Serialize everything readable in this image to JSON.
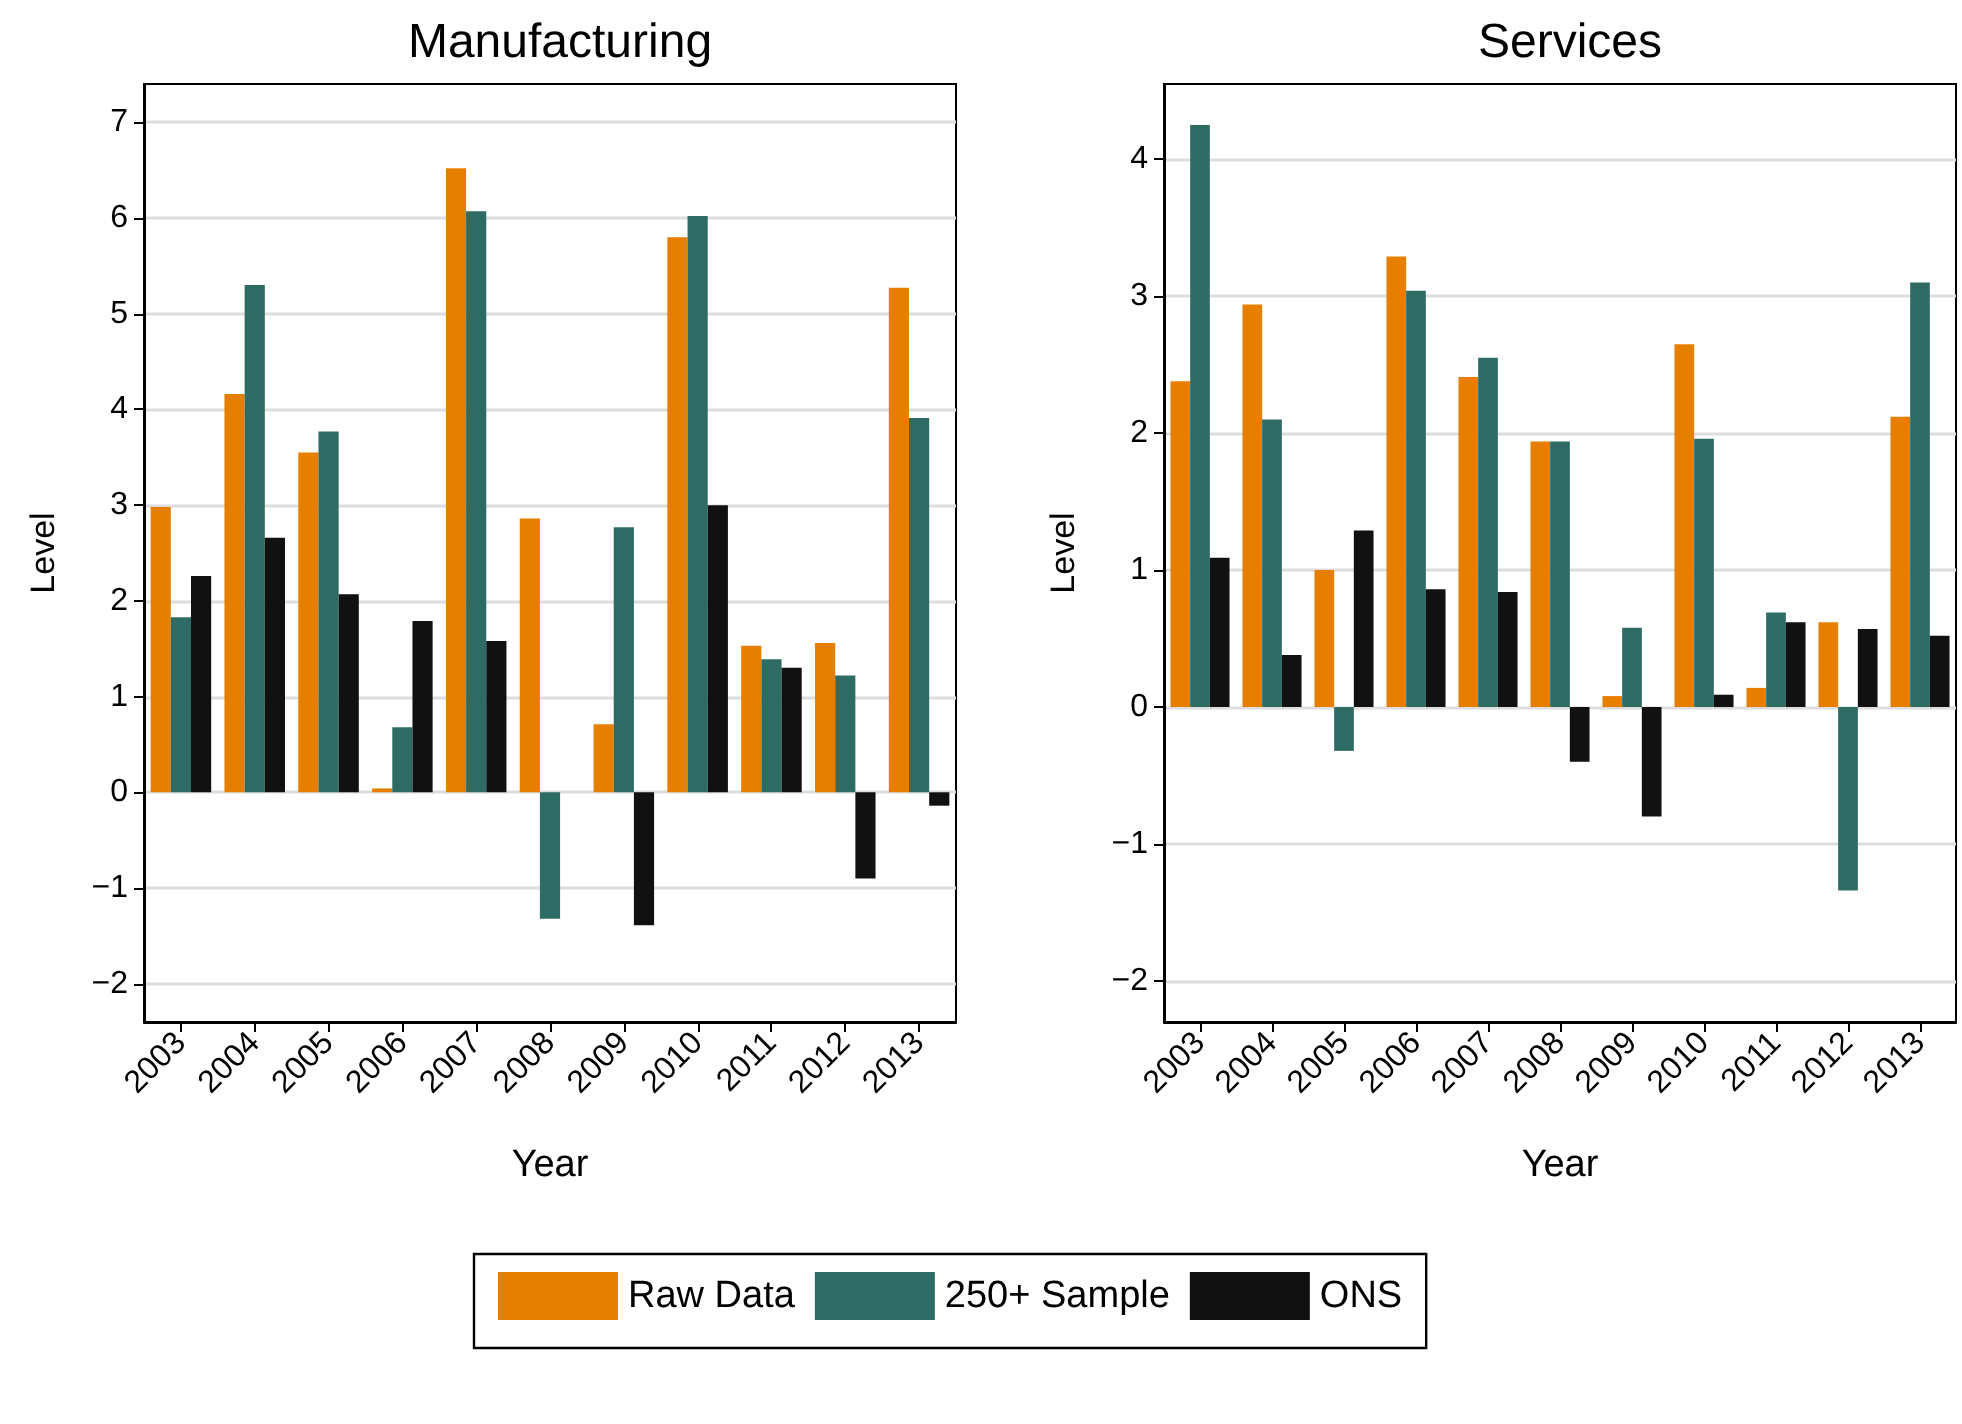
{
  "chart_data": [
    {
      "type": "bar",
      "title": "Manufacturing",
      "xlabel": "Year",
      "ylabel": "Level",
      "categories": [
        "2003",
        "2004",
        "2005",
        "2006",
        "2007",
        "2008",
        "2009",
        "2010",
        "2011",
        "2012",
        "2013"
      ],
      "series": [
        {
          "name": "Raw Data",
          "color": "#e67e00",
          "values": [
            2.98,
            4.16,
            3.55,
            0.04,
            6.52,
            2.86,
            0.71,
            5.8,
            1.53,
            1.56,
            5.27
          ]
        },
        {
          "name": "250+ Sample",
          "color": "#2e6b64",
          "values": [
            1.83,
            5.3,
            3.77,
            0.68,
            6.07,
            -1.32,
            2.77,
            6.02,
            1.39,
            1.22,
            3.91
          ]
        },
        {
          "name": "ONS",
          "color": "#111111",
          "values": [
            2.26,
            2.66,
            2.07,
            1.79,
            1.58,
            null,
            -1.39,
            3.0,
            1.3,
            -0.9,
            -0.14
          ]
        }
      ],
      "ylim": [
        -2.4,
        7.4
      ],
      "yticks": [
        -2,
        -1,
        0,
        1,
        2,
        3,
        4,
        5,
        6,
        7
      ],
      "grid": "y",
      "legend": "bottom"
    },
    {
      "type": "bar",
      "title": "Services",
      "xlabel": "Year",
      "ylabel": "Level",
      "categories": [
        "2003",
        "2004",
        "2005",
        "2006",
        "2007",
        "2008",
        "2009",
        "2010",
        "2011",
        "2012",
        "2013"
      ],
      "series": [
        {
          "color": "#e67e00",
          "values": [
            2.38,
            2.94,
            1.0,
            3.29,
            2.41,
            1.94,
            0.08,
            2.65,
            0.14,
            0.62,
            2.12
          ]
        },
        {
          "color": "#2e6b64",
          "values": [
            4.25,
            2.1,
            -0.32,
            3.04,
            2.55,
            1.94,
            0.58,
            1.96,
            0.69,
            -1.34,
            3.1
          ]
        },
        {
          "color": "#111111",
          "values": [
            1.09,
            0.38,
            1.29,
            0.86,
            0.84,
            -0.4,
            -0.8,
            0.09,
            0.62,
            0.57,
            0.52
          ]
        }
      ],
      "ylim": [
        -2.3,
        4.55
      ],
      "yticks": [
        -2,
        -1,
        0,
        1,
        2,
        3,
        4
      ],
      "grid": "y"
    }
  ]
}
